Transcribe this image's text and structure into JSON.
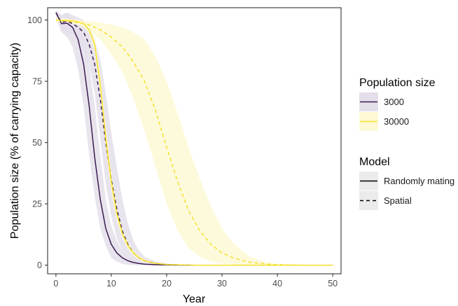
{
  "chart_data": {
    "type": "line",
    "xlabel": "Year",
    "ylabel": "Population size (% of carrying capacity)",
    "xlim": [
      -1.5,
      51.5
    ],
    "ylim": [
      -3.5,
      105
    ],
    "x_ticks": [
      0,
      10,
      20,
      30,
      40,
      50
    ],
    "y_ticks": [
      0,
      25,
      50,
      75,
      100
    ],
    "grid": false,
    "legend_placement": "right",
    "legends": {
      "population_size": {
        "title": "Population size",
        "entries": [
          {
            "label": "3000",
            "color": "#3b1d52",
            "band": "#e4dfea"
          },
          {
            "label": "30000",
            "color": "#f5e02c",
            "band": "#fdf9d5"
          }
        ]
      },
      "model": {
        "title": "Model",
        "entries": [
          {
            "label": "Randomly mating",
            "dash": "solid"
          },
          {
            "label": "Spatial",
            "dash": "dashed"
          }
        ]
      }
    },
    "series": [
      {
        "population_size": "3000",
        "model": "Randomly mating",
        "color": "#3b1d52",
        "dash": "solid",
        "x": [
          0,
          1,
          2,
          3,
          4,
          5,
          6,
          7,
          8,
          9,
          10,
          11,
          12,
          13,
          14,
          15,
          16,
          18,
          20,
          25,
          30,
          35,
          40,
          45,
          50
        ],
        "y": [
          103,
          98.5,
          98.7,
          97,
          92,
          82,
          65,
          44,
          27,
          15,
          8.5,
          5,
          3,
          1.8,
          1.1,
          0.7,
          0.4,
          0.2,
          0.1,
          0,
          0,
          0,
          0,
          0,
          0
        ],
        "band_low": [
          101,
          95,
          93,
          89,
          80,
          65,
          45,
          28,
          15,
          8,
          3,
          1.5,
          0.5,
          0.2,
          0,
          0,
          0,
          0,
          0,
          0,
          0,
          0,
          0,
          0,
          0
        ],
        "band_high": [
          104,
          102,
          103,
          101,
          99,
          93,
          82,
          65,
          45,
          27,
          16,
          10,
          6,
          3.5,
          2,
          1.2,
          0.8,
          0.3,
          0.1,
          0,
          0,
          0,
          0,
          0,
          0
        ]
      },
      {
        "population_size": "3000",
        "model": "Spatial",
        "color": "#3b1d52",
        "dash": "dashed",
        "x": [
          0,
          1,
          2,
          3,
          4,
          5,
          6,
          7,
          8,
          9,
          10,
          11,
          12,
          13,
          14,
          15,
          16,
          18,
          20,
          25,
          30,
          35,
          40,
          45,
          50
        ],
        "y": [
          103,
          99,
          99.5,
          98.5,
          97,
          95,
          90,
          82,
          68,
          50,
          35,
          23,
          14,
          8.5,
          5,
          3,
          1.8,
          0.7,
          0.3,
          0,
          0,
          0,
          0,
          0,
          0
        ],
        "band_low": [
          101,
          96,
          95,
          94,
          92,
          88,
          82,
          70,
          52,
          33,
          20,
          11,
          6,
          3,
          1.5,
          0.8,
          0.4,
          0.1,
          0,
          0,
          0,
          0,
          0,
          0,
          0
        ],
        "band_high": [
          104,
          102,
          103,
          102,
          101,
          100,
          97,
          92,
          84,
          70,
          54,
          40,
          27,
          17,
          10,
          6,
          3.5,
          1.5,
          0.6,
          0.1,
          0,
          0,
          0,
          0,
          0
        ]
      },
      {
        "population_size": "30000",
        "model": "Randomly mating",
        "color": "#f5e02c",
        "dash": "solid",
        "x": [
          0,
          1,
          2,
          3,
          4,
          5,
          6,
          7,
          8,
          9,
          10,
          11,
          12,
          13,
          14,
          15,
          16,
          18,
          20,
          25,
          30,
          35,
          40,
          45,
          50
        ],
        "y": [
          100,
          99.8,
          99.8,
          99.6,
          99.2,
          98.5,
          96,
          90,
          74,
          52,
          34,
          21,
          13,
          8,
          5,
          3,
          1.8,
          0.7,
          0.3,
          0,
          0,
          0,
          0,
          0,
          0
        ],
        "band_low": [
          99.5,
          99.3,
          99.2,
          99,
          98.5,
          97.5,
          94.5,
          87.5,
          70,
          48,
          30,
          18,
          11,
          6.5,
          3.8,
          2.2,
          1.2,
          0.4,
          0.1,
          0,
          0,
          0,
          0,
          0,
          0
        ],
        "band_high": [
          100.5,
          100.3,
          100.3,
          100.2,
          99.8,
          99.3,
          97.5,
          92.5,
          78,
          56,
          38,
          24,
          15,
          9.5,
          6,
          3.8,
          2.4,
          1,
          0.5,
          0,
          0,
          0,
          0,
          0,
          0
        ]
      },
      {
        "population_size": "30000",
        "model": "Spatial",
        "color": "#f5e02c",
        "dash": "dashed",
        "x": [
          0,
          2,
          4,
          6,
          8,
          10,
          12,
          14,
          16,
          18,
          20,
          22,
          24,
          26,
          28,
          30,
          32,
          35,
          38,
          40,
          45,
          50
        ],
        "y": [
          100,
          99.5,
          99,
          98,
          96,
          93,
          89,
          83,
          75,
          63,
          48,
          34,
          22,
          14,
          8.5,
          5,
          3,
          1.2,
          0.5,
          0.2,
          0,
          0
        ],
        "band_low": [
          99,
          99,
          98,
          96,
          92,
          86,
          79,
          68,
          55,
          40,
          25,
          14,
          7,
          3.5,
          1.5,
          0.6,
          0.2,
          0,
          0,
          0,
          0,
          0
        ],
        "band_high": [
          101,
          100.5,
          100,
          99.5,
          99,
          98,
          97,
          95,
          92,
          85,
          75,
          62,
          48,
          35,
          24,
          15,
          9,
          3.5,
          1.2,
          0.5,
          0.05,
          0
        ]
      }
    ]
  }
}
